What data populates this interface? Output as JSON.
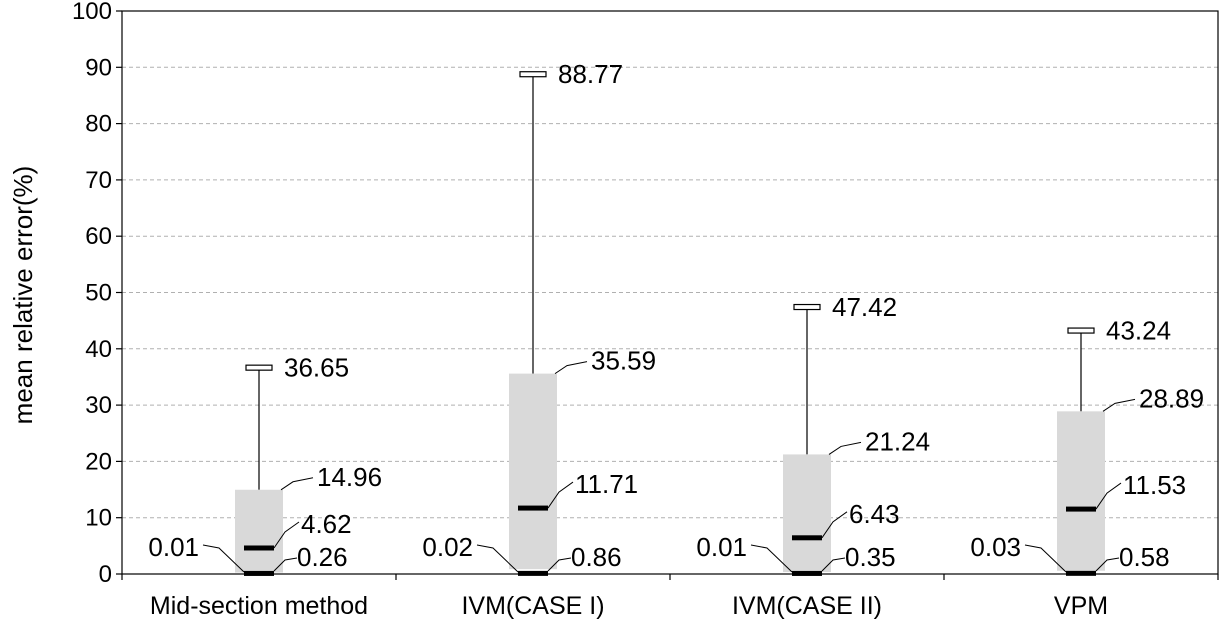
{
  "chart_data": {
    "type": "box",
    "title": "",
    "xlabel": "",
    "ylabel": "mean relative error(%)",
    "ylim": [
      0,
      100
    ],
    "yticks": [
      0,
      10,
      20,
      30,
      40,
      50,
      60,
      70,
      80,
      90,
      100
    ],
    "ytick_labels": [
      "0",
      "10",
      "20",
      "30",
      "40",
      "50",
      "60",
      "70",
      "80",
      "90",
      "100"
    ],
    "grid": "horizontal dashed",
    "categories": [
      "Mid-section method",
      "IVM(CASE I)",
      "IVM(CASE II)",
      "VPM"
    ],
    "boxes": [
      {
        "min": 0.01,
        "q1": 0.26,
        "median": 4.62,
        "q3": 14.96,
        "max": 36.65,
        "labels": {
          "min": "0.01",
          "q1": "0.26",
          "median": "4.62",
          "q3": "14.96",
          "max": "36.65"
        }
      },
      {
        "min": 0.02,
        "q1": 0.86,
        "median": 11.71,
        "q3": 35.59,
        "max": 88.77,
        "labels": {
          "min": "0.02",
          "q1": "0.86",
          "median": "11.71",
          "q3": "35.59",
          "max": "88.77"
        }
      },
      {
        "min": 0.01,
        "q1": 0.35,
        "median": 6.43,
        "q3": 21.24,
        "max": 47.42,
        "labels": {
          "min": "0.01",
          "q1": "0.35",
          "median": "6.43",
          "q3": "21.24",
          "max": "47.42"
        }
      },
      {
        "min": 0.03,
        "q1": 0.58,
        "median": 11.53,
        "q3": 28.89,
        "max": 43.24,
        "labels": {
          "min": "0.03",
          "q1": "0.58",
          "median": "11.53",
          "q3": "28.89",
          "max": "43.24"
        }
      }
    ],
    "colors": {
      "box": "#d9d9d9",
      "median": "#000000",
      "whisker": "#000000",
      "grid": "#b0b0b0"
    }
  }
}
